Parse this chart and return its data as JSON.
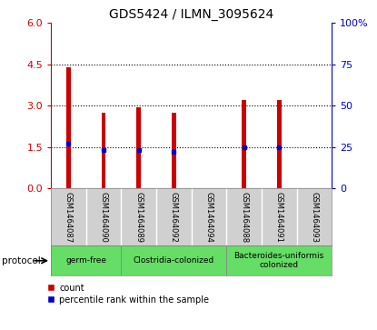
{
  "title": "GDS5424 / ILMN_3095624",
  "samples": [
    "GSM1464087",
    "GSM1464090",
    "GSM1464089",
    "GSM1464092",
    "GSM1464094",
    "GSM1464088",
    "GSM1464091",
    "GSM1464093"
  ],
  "counts": [
    4.4,
    2.75,
    2.95,
    2.75,
    0.0,
    3.2,
    3.2,
    0.0
  ],
  "percentile_ranks": [
    27,
    23,
    23,
    22,
    0,
    25,
    25,
    0
  ],
  "has_bar": [
    true,
    true,
    true,
    true,
    false,
    true,
    true,
    false
  ],
  "groups": [
    {
      "label": "germ-free",
      "start": 0,
      "end": 1
    },
    {
      "label": "Clostridia-colonized",
      "start": 2,
      "end": 4
    },
    {
      "label": "Bacteroides-uniformis\ncolonized",
      "start": 5,
      "end": 7
    }
  ],
  "ylim_left": [
    0,
    6
  ],
  "ylim_right": [
    0,
    100
  ],
  "yticks_left": [
    0,
    1.5,
    3.0,
    4.5,
    6
  ],
  "yticks_right": [
    0,
    25,
    50,
    75,
    100
  ],
  "bar_color": "#CC0000",
  "dot_color": "#0000CC",
  "sample_bg": "#d0d0d0",
  "green_color": "#66DD66",
  "left_tick_color": "#CC0000",
  "right_tick_color": "#0000CC",
  "bar_width": 0.12
}
